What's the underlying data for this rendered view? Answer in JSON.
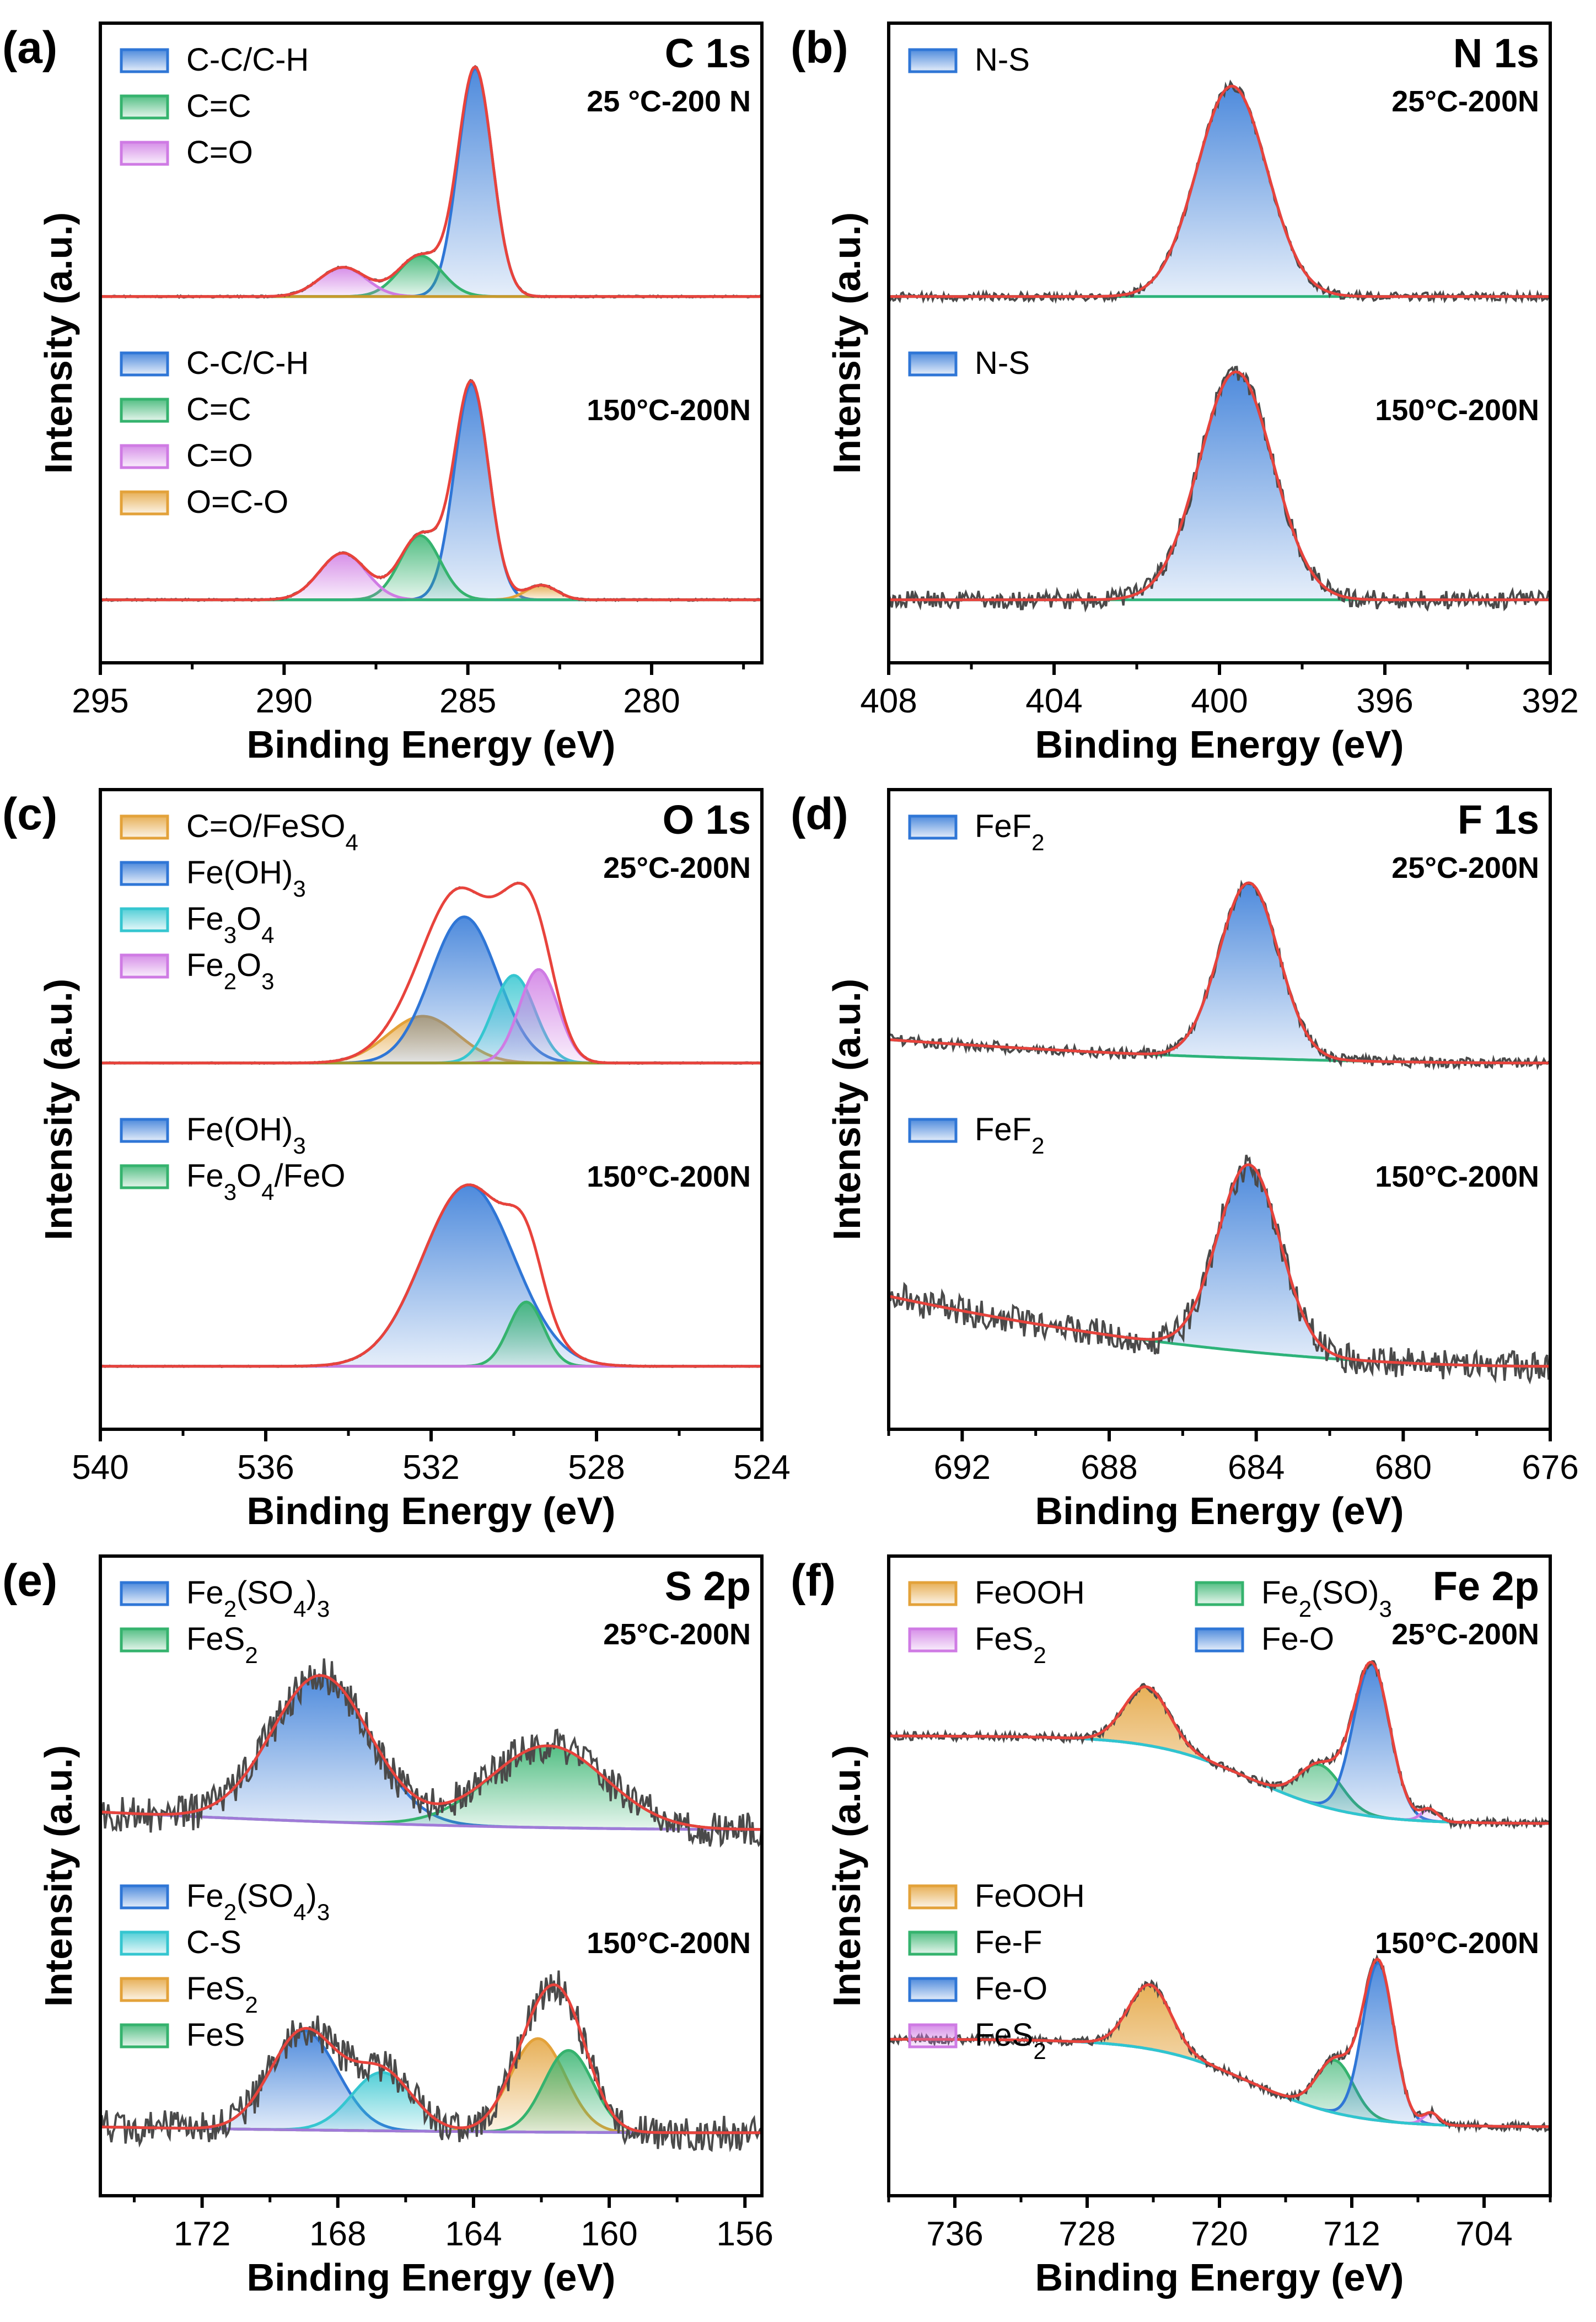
{
  "colors": {
    "envelope": "#e8433c",
    "raw": "#4a4a4a",
    "bg_c": "#c79b2b",
    "bg_n": "#2db37a",
    "bg_o_top": "#9c9a2a",
    "bg_o_bottom": "#c977e0",
    "bg_f": "#2db37a",
    "bg_s": "#a07ad8",
    "bg_fe": "#2ec6cf",
    "blue": "#2f76d6",
    "green": "#35b36e",
    "pink": "#cf7be4",
    "orange": "#e3a23a",
    "cyan": "#35c6d0"
  },
  "chart_data": [
    {
      "type": "line",
      "panel": "(a)",
      "core": "C 1s",
      "xlabel": "Binding Energy (eV)",
      "ylabel": "Intensity (a.u.)",
      "xlim": [
        295,
        277
      ],
      "xticks": [
        295,
        290,
        285,
        280
      ],
      "ylim": [
        0,
        100
      ],
      "spectra": [
        {
          "condition": "25 °C-200 N",
          "baseline": 57,
          "bg_color_key": "bg_c",
          "noise": 0.15,
          "legend": [
            {
              "label": "C-C/C-H",
              "color_key": "blue"
            },
            {
              "label": "C=C",
              "color_key": "green"
            },
            {
              "label": "C=O",
              "color_key": "pink"
            }
          ],
          "peaks": [
            {
              "name": "C-C/C-H",
              "center": 284.8,
              "height": 39,
              "fwhm": 1.1,
              "color_key": "blue"
            },
            {
              "name": "C=C",
              "center": 286.3,
              "height": 7,
              "fwhm": 1.4,
              "color_key": "green"
            },
            {
              "name": "C=O",
              "center": 288.4,
              "height": 5,
              "fwhm": 1.5,
              "color_key": "pink"
            }
          ]
        },
        {
          "condition": "150°C-200N",
          "baseline": 12,
          "bg_color_key": "bg_n",
          "noise": 0.15,
          "legend": [
            {
              "label": "C-C/C-H",
              "color_key": "blue"
            },
            {
              "label": "C=C",
              "color_key": "green"
            },
            {
              "label": "C=O",
              "color_key": "pink"
            },
            {
              "label": "O=C-O",
              "color_key": "orange"
            }
          ],
          "peaks": [
            {
              "name": "C-C/C-H",
              "center": 284.9,
              "height": 37,
              "fwhm": 1.1,
              "color_key": "blue"
            },
            {
              "name": "C=C",
              "center": 286.3,
              "height": 11,
              "fwhm": 1.3,
              "color_key": "green"
            },
            {
              "name": "C=O",
              "center": 288.4,
              "height": 8,
              "fwhm": 1.5,
              "color_key": "pink"
            },
            {
              "name": "O=C-O",
              "center": 283.0,
              "height": 2.5,
              "fwhm": 1.0,
              "color_key": "orange"
            }
          ]
        }
      ]
    },
    {
      "type": "line",
      "panel": "(b)",
      "core": "N 1s",
      "xlabel": "Binding Energy (eV)",
      "ylabel": "Intensity (a.u.)",
      "xlim": [
        408,
        392
      ],
      "xticks": [
        408,
        404,
        400,
        396,
        392
      ],
      "ylim": [
        0,
        100
      ],
      "spectra": [
        {
          "condition": "25°C-200N",
          "baseline": 56,
          "bg_color_key": "bg_n",
          "noise": 0.7,
          "legend": [
            {
              "label": "N-S",
              "color_key": "blue"
            }
          ],
          "peaks": [
            {
              "name": "N-S",
              "center": 399.7,
              "height": 36,
              "fwhm": 2.0,
              "color_key": "blue"
            }
          ]
        },
        {
          "condition": "150°C-200N",
          "baseline": 8,
          "bg_color_key": "bg_n",
          "noise": 1.6,
          "legend": [
            {
              "label": "N-S",
              "color_key": "blue"
            }
          ],
          "peaks": [
            {
              "name": "N-S",
              "center": 399.6,
              "height": 39,
              "fwhm": 2.1,
              "color_key": "blue"
            }
          ]
        }
      ]
    },
    {
      "type": "line",
      "panel": "(c)",
      "core": "O 1s",
      "xlabel": "Binding Energy (eV)",
      "ylabel": "Intensity (a.u.)",
      "xlim": [
        540,
        524
      ],
      "xticks": [
        540,
        536,
        532,
        528,
        524
      ],
      "ylim": [
        0,
        100
      ],
      "spectra": [
        {
          "condition": "25°C-200N",
          "baseline": 51,
          "bg_color_key": "bg_o_top",
          "noise": 0.1,
          "legend": [
            {
              "label": "C=O/FeSO",
              "sub": "4",
              "color_key": "orange"
            },
            {
              "label": "Fe(OH)",
              "sub": "3",
              "color_key": "blue"
            },
            {
              "label": "Fe",
              "sub": "3",
              "tail": "O",
              "sub2": "4",
              "color_key": "cyan"
            },
            {
              "label": "Fe",
              "sub": "2",
              "tail": "O",
              "sub2": "3",
              "color_key": "pink"
            }
          ],
          "peaks": [
            {
              "name": "C=O/FeSO4",
              "center": 532.2,
              "height": 8,
              "fwhm": 2.0,
              "color_key": "orange"
            },
            {
              "name": "Fe(OH)3",
              "center": 531.2,
              "height": 25,
              "fwhm": 1.9,
              "color_key": "blue"
            },
            {
              "name": "Fe3O4",
              "center": 530.0,
              "height": 15,
              "fwhm": 1.2,
              "color_key": "cyan"
            },
            {
              "name": "Fe2O3",
              "center": 529.4,
              "height": 16,
              "fwhm": 1.1,
              "color_key": "pink"
            }
          ]
        },
        {
          "condition": "150°C-200N",
          "baseline": 7,
          "bg_color_key": "bg_o_bottom",
          "noise": 0.1,
          "legend": [
            {
              "label": "Fe(OH)",
              "sub": "3",
              "color_key": "blue"
            },
            {
              "label": "Fe",
              "sub": "3",
              "tail": "O",
              "sub2": "4",
              "tail2": "/FeO",
              "color_key": "green"
            }
          ],
          "peaks": [
            {
              "name": "Fe(OH)3",
              "center": 531.1,
              "height": 31,
              "fwhm": 2.6,
              "color_key": "blue"
            },
            {
              "name": "Fe3O4/FeO",
              "center": 529.7,
              "height": 11,
              "fwhm": 1.0,
              "color_key": "green"
            }
          ]
        }
      ]
    },
    {
      "type": "line",
      "panel": "(d)",
      "core": "F 1s",
      "xlabel": "Binding Energy (eV)",
      "ylabel": "Intensity (a.u.)",
      "xlim": [
        694,
        676
      ],
      "xticks": [
        692,
        688,
        684,
        680,
        676
      ],
      "ylim": [
        0,
        100
      ],
      "spectra": [
        {
          "condition": "25°C-200N",
          "baseline": 53,
          "bg_slope": 4,
          "bg_color_key": "bg_f",
          "noise": 0.9,
          "legend": [
            {
              "label": "FeF",
              "sub": "2",
              "color_key": "blue"
            }
          ],
          "peaks": [
            {
              "name": "FeF2",
              "center": 684.2,
              "height": 30,
              "fwhm": 1.9,
              "color_key": "blue"
            }
          ]
        },
        {
          "condition": "150°C-200N",
          "baseline": 8,
          "bg_slope": 12,
          "bg_color_key": "bg_f",
          "noise": 2.6,
          "legend": [
            {
              "label": "FeF",
              "sub": "2",
              "color_key": "blue"
            }
          ],
          "peaks": [
            {
              "name": "FeF2",
              "center": 684.2,
              "height": 32,
              "fwhm": 2.0,
              "color_key": "blue"
            }
          ]
        }
      ]
    },
    {
      "type": "line",
      "panel": "(e)",
      "core": "S 2p",
      "xlabel": "Binding Energy (eV)",
      "ylabel": "Intensity (a.u.)",
      "xlim": [
        175,
        155.5
      ],
      "xticks": [
        172,
        168,
        164,
        160,
        156
      ],
      "ylim": [
        0,
        100
      ],
      "spectra": [
        {
          "condition": "25°C-200N",
          "baseline": 54,
          "bg_slope": 3,
          "bg_color_key": "bg_s",
          "noise": 3.2,
          "legend": [
            {
              "label": "Fe",
              "sub": "2",
              "tail": "(SO",
              "sub2": "4",
              "tail2": ")",
              "sub3": "3",
              "color_key": "blue"
            },
            {
              "label": "FeS",
              "sub": "2",
              "color_key": "green"
            }
          ],
          "peaks": [
            {
              "name": "Fe2(SO4)3",
              "center": 168.5,
              "height": 25,
              "fwhm": 3.4,
              "color_key": "blue"
            },
            {
              "name": "FeS2",
              "center": 161.8,
              "height": 14,
              "fwhm": 4.0,
              "color_key": "green"
            }
          ]
        },
        {
          "condition": "150°C-200N",
          "baseline": 6,
          "bg_slope": 1,
          "bg_color_key": "bg_s",
          "noise": 3.0,
          "legend": [
            {
              "label": "Fe",
              "sub": "2",
              "tail": "(SO",
              "sub2": "4",
              "tail2": ")",
              "sub3": "3",
              "color_key": "blue"
            },
            {
              "label": "C-S",
              "color_key": "cyan"
            },
            {
              "label": "FeS",
              "sub": "2",
              "color_key": "orange"
            },
            {
              "label": "FeS",
              "color_key": "green"
            }
          ],
          "peaks": [
            {
              "name": "Fe2(SO4)3",
              "center": 169.0,
              "height": 17,
              "fwhm": 2.3,
              "color_key": "blue"
            },
            {
              "name": "C-S",
              "center": 166.7,
              "height": 10,
              "fwhm": 2.1,
              "color_key": "cyan"
            },
            {
              "name": "FeS2",
              "center": 162.1,
              "height": 16,
              "fwhm": 1.9,
              "color_key": "orange"
            },
            {
              "name": "FeS",
              "center": 161.2,
              "height": 14,
              "fwhm": 1.7,
              "color_key": "green"
            }
          ]
        }
      ]
    },
    {
      "type": "line",
      "panel": "(f)",
      "core": "Fe 2p",
      "xlabel": "Binding Energy (eV)",
      "ylabel": "Intensity (a.u.)",
      "xlim": [
        740,
        700
      ],
      "xticks": [
        736,
        728,
        720,
        712,
        704
      ],
      "ylim": [
        0,
        100
      ],
      "spectra": [
        {
          "condition": "25°C-200N",
          "baseline": 55,
          "bg_sigmoid": {
            "center": 718,
            "width": 3,
            "amp": 15,
            "start": 16
          },
          "bg_color_key": "bg_fe",
          "noise": 0.7,
          "legend": [
            {
              "label": "FeOOH",
              "color_key": "orange"
            },
            {
              "label": "Fe",
              "sub": "2",
              "tail": "(SO)",
              "sub2": "3",
              "color_key": "green"
            },
            {
              "label": "FeS",
              "sub": "2",
              "color_key": "pink"
            },
            {
              "label": "Fe-O",
              "color_key": "blue"
            }
          ],
          "peaks": [
            {
              "name": "FeOOH",
              "center": 724.4,
              "height": 10,
              "fwhm": 3.2,
              "color_key": "orange"
            },
            {
              "name": "Fe2(SO)3",
              "center": 713.9,
              "height": 7,
              "fwhm": 3.0,
              "color_key": "green"
            },
            {
              "name": "Fe-O",
              "center": 710.8,
              "height": 26,
              "fwhm": 2.6,
              "color_key": "blue"
            },
            {
              "name": "FeS2",
              "center": 707.3,
              "height": 2,
              "fwhm": 1.2,
              "color_key": "pink"
            }
          ]
        },
        {
          "condition": "150°C-200N",
          "baseline": 6,
          "bg_sigmoid": {
            "center": 718,
            "width": 3,
            "amp": 15,
            "start": 16
          },
          "bg_color_key": "bg_fe",
          "noise": 0.7,
          "legend": [
            {
              "label": "FeOOH",
              "color_key": "orange"
            },
            {
              "label": "Fe-F",
              "color_key": "green"
            },
            {
              "label": "Fe-O",
              "color_key": "blue"
            },
            {
              "label": "FeS",
              "sub": "2",
              "color_key": "pink"
            }
          ],
          "peaks": [
            {
              "name": "FeOOH",
              "center": 724.2,
              "height": 11,
              "fwhm": 3.0,
              "color_key": "orange"
            },
            {
              "name": "Fe-F",
              "center": 713.0,
              "height": 9,
              "fwhm": 2.6,
              "color_key": "green"
            },
            {
              "name": "Fe-O",
              "center": 710.4,
              "height": 27,
              "fwhm": 2.2,
              "color_key": "blue"
            },
            {
              "name": "FeS2",
              "center": 707.2,
              "height": 2,
              "fwhm": 1.1,
              "color_key": "pink"
            }
          ]
        }
      ]
    }
  ]
}
